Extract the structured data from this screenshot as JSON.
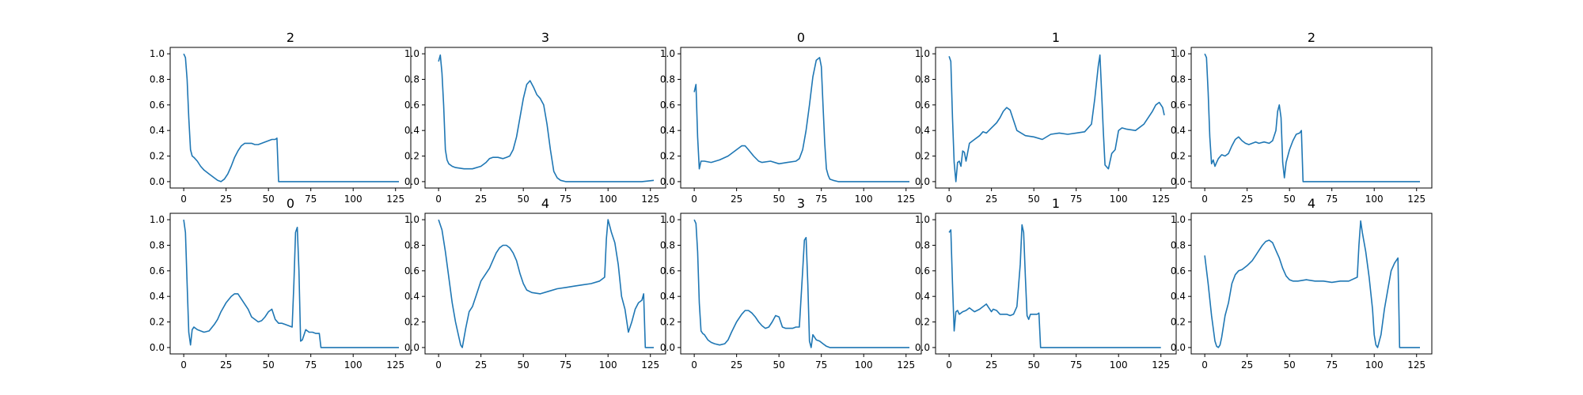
{
  "figure": {
    "line_color": "#1f77b4",
    "background": "#ffffff"
  },
  "chart_data": [
    {
      "type": "line",
      "title": "2",
      "xlim": [
        -8,
        134
      ],
      "ylim": [
        -0.05,
        1.05
      ],
      "xticks": [
        0,
        25,
        50,
        75,
        100,
        125
      ],
      "yticks": [
        0.0,
        0.2,
        0.4,
        0.6,
        0.8,
        1.0
      ],
      "x": [
        0,
        1,
        2,
        3,
        4,
        5,
        6,
        8,
        10,
        12,
        15,
        18,
        20,
        22,
        24,
        26,
        28,
        30,
        32,
        34,
        36,
        38,
        40,
        42,
        44,
        46,
        48,
        50,
        52,
        54,
        55,
        56,
        57,
        60,
        70,
        80,
        90,
        100,
        110,
        120,
        127
      ],
      "values": [
        1.0,
        0.97,
        0.8,
        0.5,
        0.25,
        0.2,
        0.19,
        0.16,
        0.12,
        0.09,
        0.06,
        0.03,
        0.01,
        0.0,
        0.02,
        0.06,
        0.12,
        0.19,
        0.24,
        0.28,
        0.3,
        0.3,
        0.3,
        0.29,
        0.29,
        0.3,
        0.31,
        0.32,
        0.33,
        0.33,
        0.34,
        0.0,
        0.0,
        0.0,
        0.0,
        0.0,
        0.0,
        0.0,
        0.0,
        0.0,
        0.0
      ]
    },
    {
      "type": "line",
      "title": "3",
      "xlim": [
        -8,
        134
      ],
      "ylim": [
        -0.05,
        1.05
      ],
      "xticks": [
        0,
        25,
        50,
        75,
        100,
        125
      ],
      "yticks": [
        0.0,
        0.2,
        0.4,
        0.6,
        0.8,
        1.0
      ],
      "x": [
        0,
        1,
        2,
        3,
        4,
        5,
        6,
        8,
        10,
        15,
        20,
        25,
        28,
        30,
        32,
        35,
        38,
        40,
        42,
        44,
        46,
        48,
        50,
        52,
        54,
        56,
        58,
        60,
        62,
        64,
        66,
        68,
        70,
        72,
        75,
        80,
        90,
        100,
        110,
        120,
        127
      ],
      "values": [
        0.94,
        0.99,
        0.85,
        0.6,
        0.25,
        0.17,
        0.14,
        0.12,
        0.11,
        0.1,
        0.1,
        0.12,
        0.15,
        0.18,
        0.19,
        0.19,
        0.18,
        0.19,
        0.2,
        0.25,
        0.35,
        0.5,
        0.65,
        0.76,
        0.79,
        0.74,
        0.68,
        0.65,
        0.6,
        0.45,
        0.25,
        0.08,
        0.03,
        0.01,
        0.0,
        0.0,
        0.0,
        0.0,
        0.0,
        0.0,
        0.01
      ]
    },
    {
      "type": "line",
      "title": "0",
      "xlim": [
        -8,
        134
      ],
      "ylim": [
        -0.05,
        1.05
      ],
      "xticks": [
        0,
        25,
        50,
        75,
        100,
        125
      ],
      "yticks": [
        0.0,
        0.2,
        0.4,
        0.6,
        0.8,
        1.0
      ],
      "x": [
        0,
        1,
        2,
        3,
        4,
        6,
        10,
        15,
        20,
        25,
        28,
        30,
        32,
        35,
        38,
        40,
        45,
        50,
        55,
        60,
        62,
        64,
        66,
        68,
        70,
        72,
        74,
        75,
        76,
        77,
        78,
        79,
        80,
        82,
        85,
        90,
        100,
        110,
        120,
        127
      ],
      "values": [
        0.7,
        0.76,
        0.35,
        0.1,
        0.16,
        0.16,
        0.15,
        0.17,
        0.2,
        0.25,
        0.28,
        0.28,
        0.25,
        0.2,
        0.16,
        0.15,
        0.16,
        0.14,
        0.15,
        0.16,
        0.18,
        0.25,
        0.4,
        0.6,
        0.82,
        0.95,
        0.97,
        0.9,
        0.6,
        0.3,
        0.1,
        0.05,
        0.02,
        0.01,
        0.0,
        0.0,
        0.0,
        0.0,
        0.0,
        0.0
      ]
    },
    {
      "type": "line",
      "title": "1",
      "xlim": [
        -8,
        134
      ],
      "ylim": [
        -0.05,
        1.05
      ],
      "xticks": [
        0,
        25,
        50,
        75,
        100,
        125
      ],
      "yticks": [
        0.0,
        0.2,
        0.4,
        0.6,
        0.8,
        1.0
      ],
      "x": [
        0,
        1,
        2,
        3,
        4,
        5,
        6,
        7,
        8,
        9,
        10,
        12,
        15,
        18,
        20,
        22,
        25,
        28,
        30,
        32,
        34,
        36,
        38,
        40,
        45,
        50,
        55,
        60,
        65,
        70,
        75,
        80,
        84,
        86,
        88,
        89,
        90,
        91,
        92,
        94,
        96,
        98,
        100,
        102,
        105,
        110,
        115,
        120,
        122,
        124,
        126,
        127
      ],
      "values": [
        0.98,
        0.94,
        0.5,
        0.15,
        0.0,
        0.15,
        0.16,
        0.12,
        0.24,
        0.23,
        0.16,
        0.3,
        0.33,
        0.36,
        0.39,
        0.38,
        0.42,
        0.46,
        0.5,
        0.55,
        0.58,
        0.56,
        0.48,
        0.4,
        0.36,
        0.35,
        0.33,
        0.37,
        0.38,
        0.37,
        0.38,
        0.39,
        0.45,
        0.65,
        0.9,
        0.99,
        0.7,
        0.4,
        0.13,
        0.1,
        0.22,
        0.25,
        0.4,
        0.42,
        0.41,
        0.4,
        0.45,
        0.55,
        0.6,
        0.62,
        0.58,
        0.52
      ]
    },
    {
      "type": "line",
      "title": "2",
      "xlim": [
        -8,
        134
      ],
      "ylim": [
        -0.05,
        1.05
      ],
      "xticks": [
        0,
        25,
        50,
        75,
        100,
        125
      ],
      "yticks": [
        0.0,
        0.2,
        0.4,
        0.6,
        0.8,
        1.0
      ],
      "x": [
        0,
        1,
        2,
        3,
        4,
        5,
        6,
        7,
        8,
        10,
        12,
        14,
        16,
        18,
        20,
        22,
        24,
        26,
        28,
        30,
        32,
        35,
        38,
        40,
        42,
        43,
        44,
        45,
        46,
        47,
        48,
        50,
        52,
        54,
        56,
        57,
        58,
        60,
        70,
        80,
        90,
        100,
        110,
        120,
        127
      ],
      "values": [
        1.0,
        0.97,
        0.7,
        0.35,
        0.14,
        0.17,
        0.12,
        0.15,
        0.18,
        0.21,
        0.2,
        0.22,
        0.28,
        0.33,
        0.35,
        0.32,
        0.3,
        0.29,
        0.3,
        0.31,
        0.3,
        0.31,
        0.3,
        0.32,
        0.4,
        0.55,
        0.6,
        0.5,
        0.15,
        0.03,
        0.15,
        0.25,
        0.32,
        0.37,
        0.38,
        0.4,
        0.0,
        0.0,
        0.0,
        0.0,
        0.0,
        0.0,
        0.0,
        0.0,
        0.0
      ]
    },
    {
      "type": "line",
      "title": "0",
      "xlim": [
        -8,
        134
      ],
      "ylim": [
        -0.05,
        1.05
      ],
      "xticks": [
        0,
        25,
        50,
        75,
        100,
        125
      ],
      "yticks": [
        0.0,
        0.2,
        0.4,
        0.6,
        0.8,
        1.0
      ],
      "x": [
        0,
        1,
        2,
        3,
        4,
        5,
        6,
        8,
        10,
        12,
        15,
        18,
        20,
        22,
        25,
        28,
        30,
        32,
        34,
        36,
        38,
        40,
        42,
        44,
        46,
        48,
        50,
        52,
        54,
        56,
        58,
        60,
        62,
        64,
        65,
        66,
        67,
        68,
        69,
        70,
        72,
        74,
        76,
        78,
        80,
        81,
        85,
        90,
        100,
        110,
        120,
        127
      ],
      "values": [
        1.0,
        0.9,
        0.5,
        0.12,
        0.02,
        0.14,
        0.16,
        0.14,
        0.13,
        0.12,
        0.13,
        0.18,
        0.22,
        0.28,
        0.35,
        0.4,
        0.42,
        0.42,
        0.38,
        0.34,
        0.3,
        0.24,
        0.22,
        0.2,
        0.21,
        0.24,
        0.28,
        0.3,
        0.22,
        0.19,
        0.19,
        0.18,
        0.17,
        0.16,
        0.5,
        0.9,
        0.94,
        0.6,
        0.05,
        0.06,
        0.14,
        0.12,
        0.12,
        0.11,
        0.11,
        0.0,
        0.0,
        0.0,
        0.0,
        0.0,
        0.0,
        0.0
      ]
    },
    {
      "type": "line",
      "title": "4",
      "xlim": [
        -8,
        134
      ],
      "ylim": [
        -0.05,
        1.05
      ],
      "xticks": [
        0,
        25,
        50,
        75,
        100,
        125
      ],
      "yticks": [
        0.0,
        0.2,
        0.4,
        0.6,
        0.8,
        1.0
      ],
      "x": [
        0,
        2,
        4,
        6,
        8,
        10,
        12,
        13,
        14,
        16,
        18,
        20,
        22,
        25,
        28,
        30,
        32,
        34,
        36,
        38,
        40,
        42,
        44,
        46,
        48,
        50,
        52,
        55,
        60,
        65,
        70,
        75,
        80,
        85,
        90,
        95,
        98,
        99,
        100,
        101,
        102,
        104,
        106,
        108,
        110,
        112,
        114,
        116,
        118,
        120,
        121,
        122,
        125,
        127
      ],
      "values": [
        1.0,
        0.92,
        0.75,
        0.55,
        0.35,
        0.2,
        0.08,
        0.02,
        0.0,
        0.15,
        0.28,
        0.32,
        0.4,
        0.52,
        0.58,
        0.62,
        0.68,
        0.74,
        0.78,
        0.8,
        0.8,
        0.78,
        0.74,
        0.68,
        0.58,
        0.5,
        0.45,
        0.43,
        0.42,
        0.44,
        0.46,
        0.47,
        0.48,
        0.49,
        0.5,
        0.52,
        0.55,
        0.85,
        1.0,
        0.95,
        0.9,
        0.82,
        0.65,
        0.4,
        0.3,
        0.12,
        0.2,
        0.3,
        0.35,
        0.37,
        0.42,
        0.0,
        0.0,
        0.0
      ]
    },
    {
      "type": "line",
      "title": "3",
      "xlim": [
        -8,
        134
      ],
      "ylim": [
        -0.05,
        1.05
      ],
      "xticks": [
        0,
        25,
        50,
        75,
        100,
        125
      ],
      "yticks": [
        0.0,
        0.2,
        0.4,
        0.6,
        0.8,
        1.0
      ],
      "x": [
        0,
        1,
        2,
        3,
        4,
        5,
        6,
        8,
        10,
        12,
        15,
        18,
        20,
        22,
        25,
        28,
        30,
        32,
        34,
        36,
        38,
        40,
        42,
        44,
        46,
        48,
        50,
        52,
        54,
        56,
        58,
        60,
        62,
        64,
        65,
        66,
        67,
        68,
        69,
        70,
        72,
        74,
        76,
        78,
        80,
        85,
        90,
        100,
        110,
        120,
        127
      ],
      "values": [
        1.0,
        0.97,
        0.75,
        0.35,
        0.13,
        0.11,
        0.1,
        0.06,
        0.04,
        0.03,
        0.02,
        0.03,
        0.06,
        0.12,
        0.2,
        0.26,
        0.29,
        0.29,
        0.27,
        0.24,
        0.2,
        0.17,
        0.15,
        0.16,
        0.2,
        0.25,
        0.24,
        0.16,
        0.15,
        0.15,
        0.15,
        0.16,
        0.16,
        0.6,
        0.84,
        0.86,
        0.5,
        0.05,
        0.0,
        0.1,
        0.06,
        0.05,
        0.03,
        0.01,
        0.0,
        0.0,
        0.0,
        0.0,
        0.0,
        0.0,
        0.0
      ]
    },
    {
      "type": "line",
      "title": "1",
      "xlim": [
        -8,
        134
      ],
      "ylim": [
        -0.05,
        1.05
      ],
      "xticks": [
        0,
        25,
        50,
        75,
        100,
        125
      ],
      "yticks": [
        0.0,
        0.2,
        0.4,
        0.6,
        0.8,
        1.0
      ],
      "x": [
        0,
        1,
        2,
        3,
        4,
        5,
        6,
        8,
        10,
        12,
        15,
        18,
        20,
        22,
        24,
        25,
        26,
        28,
        30,
        32,
        34,
        36,
        38,
        40,
        42,
        43,
        44,
        45,
        46,
        47,
        48,
        50,
        52,
        53,
        54,
        60,
        70,
        80,
        90,
        100,
        110,
        120,
        125
      ],
      "values": [
        0.9,
        0.92,
        0.5,
        0.13,
        0.28,
        0.29,
        0.26,
        0.28,
        0.29,
        0.31,
        0.28,
        0.3,
        0.32,
        0.34,
        0.3,
        0.28,
        0.3,
        0.29,
        0.26,
        0.26,
        0.26,
        0.25,
        0.26,
        0.32,
        0.65,
        0.96,
        0.9,
        0.55,
        0.25,
        0.22,
        0.26,
        0.26,
        0.26,
        0.27,
        0.0,
        0.0,
        0.0,
        0.0,
        0.0,
        0.0,
        0.0,
        0.0,
        0.0
      ]
    },
    {
      "type": "line",
      "title": "4",
      "xlim": [
        -8,
        134
      ],
      "ylim": [
        -0.05,
        1.05
      ],
      "xticks": [
        0,
        25,
        50,
        75,
        100,
        125
      ],
      "yticks": [
        0.0,
        0.2,
        0.4,
        0.6,
        0.8,
        1.0
      ],
      "x": [
        0,
        2,
        4,
        6,
        7,
        8,
        9,
        10,
        12,
        14,
        16,
        18,
        20,
        22,
        25,
        28,
        30,
        32,
        34,
        36,
        38,
        40,
        42,
        44,
        46,
        48,
        50,
        52,
        55,
        60,
        65,
        70,
        75,
        80,
        85,
        90,
        91,
        92,
        93,
        95,
        97,
        99,
        100,
        101,
        102,
        104,
        106,
        108,
        110,
        112,
        114,
        115,
        116,
        120,
        125,
        127
      ],
      "values": [
        0.72,
        0.5,
        0.25,
        0.05,
        0.01,
        0.0,
        0.02,
        0.08,
        0.25,
        0.35,
        0.5,
        0.57,
        0.6,
        0.61,
        0.64,
        0.68,
        0.72,
        0.76,
        0.8,
        0.83,
        0.84,
        0.82,
        0.76,
        0.7,
        0.62,
        0.56,
        0.53,
        0.52,
        0.52,
        0.53,
        0.52,
        0.52,
        0.51,
        0.52,
        0.52,
        0.55,
        0.8,
        0.99,
        0.9,
        0.75,
        0.55,
        0.3,
        0.1,
        0.02,
        0.0,
        0.1,
        0.3,
        0.45,
        0.6,
        0.66,
        0.7,
        0.0,
        0.0,
        0.0,
        0.0,
        0.0
      ]
    }
  ]
}
